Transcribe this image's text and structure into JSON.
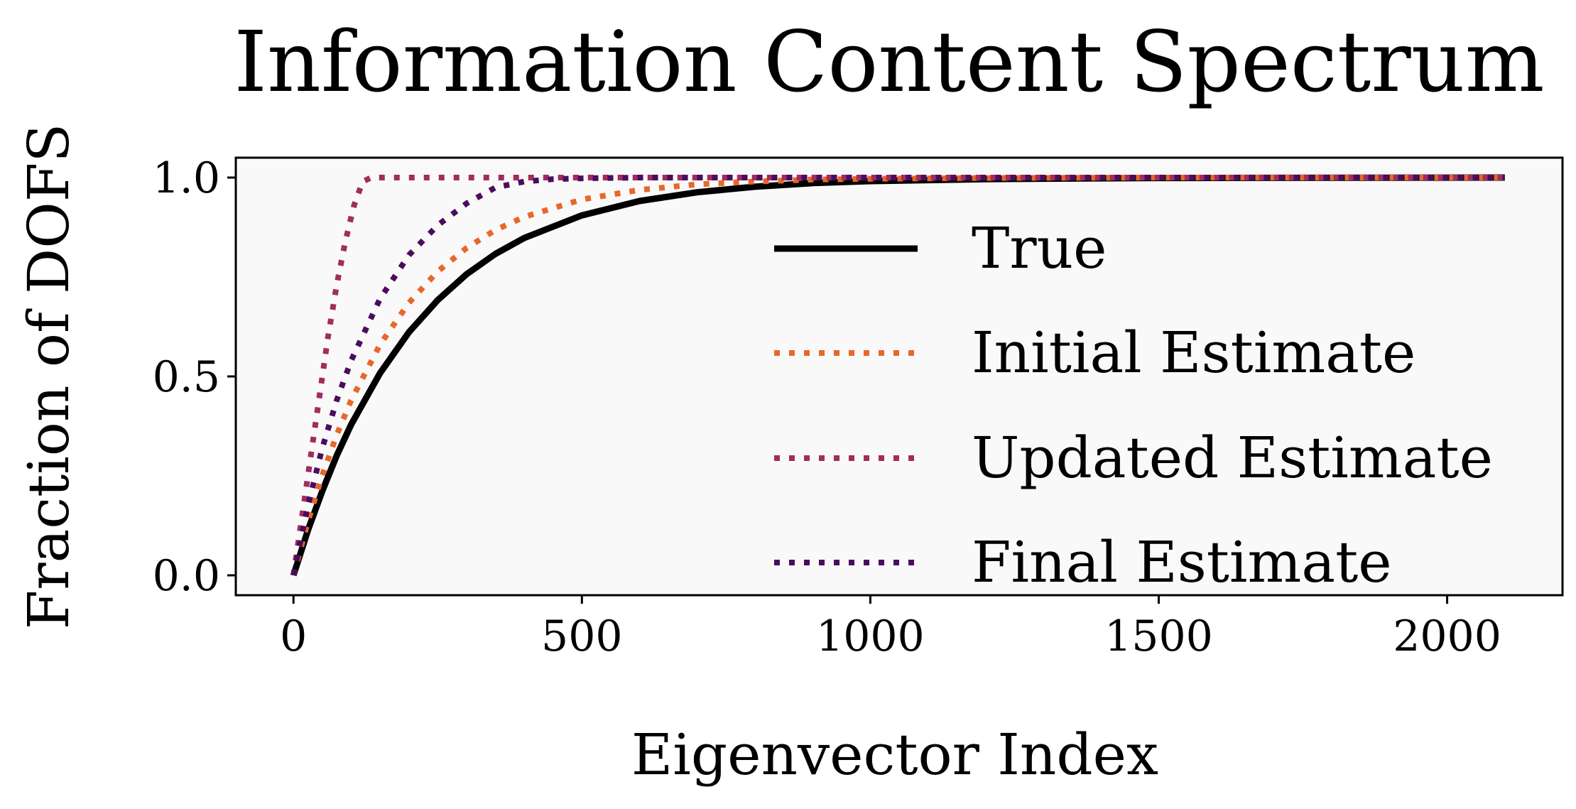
{
  "chart_data": {
    "type": "line",
    "title": "Information Content Spectrum",
    "xlabel": "Eigenvector Index",
    "ylabel": "Fraction of DOFS",
    "xlim": [
      -100,
      2200
    ],
    "ylim": [
      -0.05,
      1.05
    ],
    "xticks": [
      0,
      500,
      1000,
      1500,
      2000
    ],
    "xtick_labels": [
      "0",
      "500",
      "1000",
      "1500",
      "2000"
    ],
    "yticks": [
      0.0,
      0.5,
      1.0
    ],
    "ytick_labels": [
      "0.0",
      "0.5",
      "1.0"
    ],
    "grid": false,
    "plot_background": "#f9f9f9",
    "legend_position": "lower-right",
    "series": [
      {
        "name": "True",
        "color": "#000000",
        "style": "solid",
        "x": [
          0,
          25,
          50,
          75,
          100,
          150,
          200,
          250,
          300,
          350,
          400,
          500,
          600,
          700,
          800,
          900,
          1000,
          1200,
          1500,
          2100
        ],
        "y": [
          0.0,
          0.113,
          0.212,
          0.301,
          0.379,
          0.508,
          0.611,
          0.692,
          0.757,
          0.808,
          0.848,
          0.905,
          0.941,
          0.963,
          0.977,
          0.986,
          0.991,
          0.996,
          0.999,
          1.0
        ]
      },
      {
        "name": "Initial Estimate",
        "color": "#e8672a",
        "style": "dotted",
        "x": [
          0,
          25,
          50,
          75,
          100,
          150,
          200,
          250,
          300,
          350,
          400,
          500,
          600,
          700,
          800,
          900,
          1000,
          1200,
          1500,
          2100
        ],
        "y": [
          0.0,
          0.135,
          0.252,
          0.353,
          0.44,
          0.58,
          0.685,
          0.764,
          0.823,
          0.868,
          0.901,
          0.945,
          0.969,
          0.983,
          0.99,
          0.995,
          0.997,
          0.999,
          1.0,
          1.0
        ]
      },
      {
        "name": "Updated Estimate",
        "color": "#a22c5e",
        "style": "dotted",
        "x": [
          0,
          10,
          20,
          30,
          45,
          60,
          75,
          90,
          105,
          120,
          135,
          2100
        ],
        "y": [
          0.0,
          0.1,
          0.2,
          0.3,
          0.45,
          0.6,
          0.73,
          0.84,
          0.93,
          0.99,
          1.0,
          1.0
        ]
      },
      {
        "name": "Final Estimate",
        "color": "#4a0c5e",
        "style": "dotted",
        "x": [
          0,
          25,
          50,
          75,
          100,
          150,
          200,
          250,
          300,
          350,
          400,
          450,
          500,
          600,
          800,
          1000,
          1500,
          2100
        ],
        "y": [
          0.0,
          0.175,
          0.32,
          0.44,
          0.54,
          0.695,
          0.805,
          0.88,
          0.935,
          0.975,
          0.99,
          0.996,
          0.998,
          1.0,
          1.0,
          1.0,
          1.0,
          1.0
        ]
      }
    ]
  }
}
